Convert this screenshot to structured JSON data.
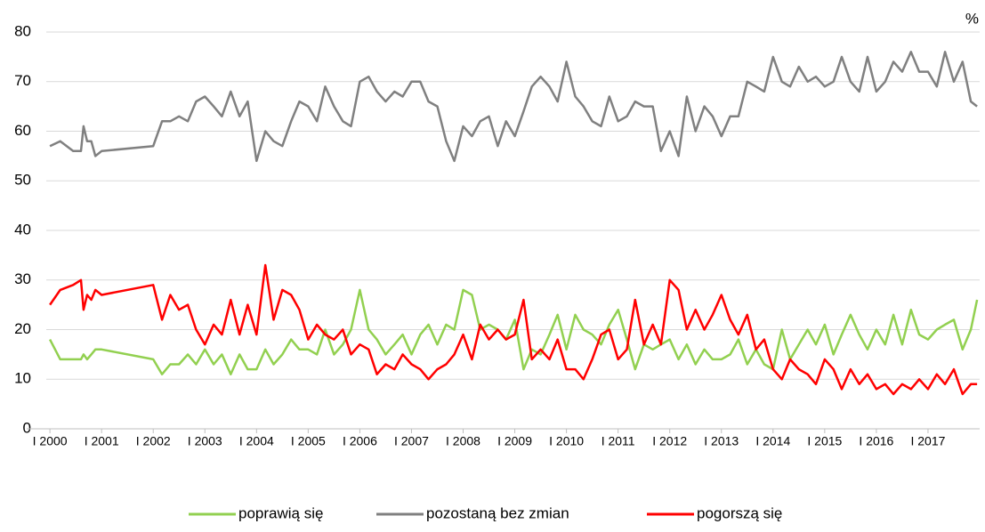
{
  "chart_data": {
    "type": "line",
    "unit_label": "%",
    "x": [
      2000.0,
      2000.2,
      2000.45,
      2000.6,
      2000.65,
      2000.72,
      2000.8,
      2000.88,
      2001.0,
      2002.0,
      2002.17,
      2002.33,
      2002.5,
      2002.67,
      2002.83,
      2003.0,
      2003.17,
      2003.33,
      2003.5,
      2003.67,
      2003.83,
      2004.0,
      2004.17,
      2004.33,
      2004.5,
      2004.67,
      2004.83,
      2005.0,
      2005.17,
      2005.33,
      2005.5,
      2005.67,
      2005.83,
      2006.0,
      2006.17,
      2006.33,
      2006.5,
      2006.67,
      2006.83,
      2007.0,
      2007.17,
      2007.33,
      2007.5,
      2007.67,
      2007.83,
      2008.0,
      2008.17,
      2008.33,
      2008.5,
      2008.67,
      2008.83,
      2009.0,
      2009.17,
      2009.33,
      2009.5,
      2009.67,
      2009.83,
      2010.0,
      2010.17,
      2010.33,
      2010.5,
      2010.67,
      2010.83,
      2011.0,
      2011.17,
      2011.33,
      2011.5,
      2011.67,
      2011.83,
      2012.0,
      2012.17,
      2012.33,
      2012.5,
      2012.67,
      2012.83,
      2013.0,
      2013.17,
      2013.33,
      2013.5,
      2013.67,
      2013.83,
      2014.0,
      2014.17,
      2014.33,
      2014.5,
      2014.67,
      2014.83,
      2015.0,
      2015.17,
      2015.33,
      2015.5,
      2015.67,
      2015.83,
      2016.0,
      2016.17,
      2016.33,
      2016.5,
      2016.67,
      2016.83,
      2017.0,
      2017.17,
      2017.33,
      2017.5,
      2017.67,
      2017.83,
      2017.95
    ],
    "series": [
      {
        "name": "poprawią się",
        "color": "#92d050",
        "values": [
          18,
          14,
          14,
          14,
          15,
          14,
          15,
          16,
          16,
          14,
          11,
          13,
          13,
          15,
          13,
          16,
          13,
          15,
          11,
          15,
          12,
          12,
          16,
          13,
          15,
          18,
          16,
          16,
          15,
          20,
          15,
          17,
          20,
          28,
          20,
          18,
          15,
          17,
          19,
          15,
          19,
          21,
          17,
          21,
          20,
          28,
          27,
          20,
          21,
          20,
          18,
          22,
          12,
          16,
          15,
          19,
          23,
          16,
          23,
          20,
          19,
          17,
          21,
          24,
          18,
          12,
          17,
          16,
          17,
          18,
          14,
          17,
          13,
          16,
          14,
          14,
          15,
          18,
          13,
          16,
          13,
          12,
          20,
          14,
          17,
          20,
          17,
          21,
          15,
          19,
          23,
          19,
          16,
          20,
          17,
          23,
          17,
          24,
          19,
          18,
          20,
          21,
          22,
          16,
          20,
          26
        ]
      },
      {
        "name": "pozostaną bez zmian",
        "color": "#808080",
        "values": [
          57,
          58,
          56,
          56,
          61,
          58,
          58,
          55,
          56,
          57,
          62,
          62,
          63,
          62,
          66,
          67,
          65,
          63,
          68,
          63,
          66,
          54,
          60,
          58,
          57,
          62,
          66,
          65,
          62,
          69,
          65,
          62,
          61,
          70,
          71,
          68,
          66,
          68,
          67,
          70,
          70,
          66,
          65,
          58,
          54,
          61,
          59,
          62,
          63,
          57,
          62,
          59,
          64,
          69,
          71,
          69,
          66,
          74,
          67,
          65,
          62,
          61,
          67,
          62,
          63,
          66,
          65,
          65,
          56,
          60,
          55,
          67,
          60,
          65,
          63,
          59,
          63,
          63,
          70,
          69,
          68,
          75,
          70,
          69,
          73,
          70,
          71,
          69,
          70,
          75,
          70,
          68,
          75,
          68,
          70,
          74,
          72,
          76,
          72,
          72,
          69,
          76,
          70,
          74,
          66,
          65
        ]
      },
      {
        "name": "pogorszą się",
        "color": "#ff0000",
        "values": [
          25,
          28,
          29,
          30,
          24,
          27,
          26,
          28,
          27,
          29,
          22,
          27,
          24,
          25,
          20,
          17,
          21,
          19,
          26,
          19,
          25,
          19,
          33,
          22,
          28,
          27,
          24,
          18,
          21,
          19,
          18,
          20,
          15,
          17,
          16,
          11,
          13,
          12,
          15,
          13,
          12,
          10,
          12,
          13,
          15,
          19,
          14,
          21,
          18,
          20,
          18,
          19,
          26,
          14,
          16,
          14,
          18,
          12,
          12,
          10,
          14,
          19,
          20,
          14,
          16,
          26,
          17,
          21,
          17,
          30,
          28,
          20,
          24,
          20,
          23,
          27,
          22,
          19,
          23,
          16,
          18,
          12,
          10,
          14,
          12,
          11,
          9,
          14,
          12,
          8,
          12,
          9,
          11,
          8,
          9,
          7,
          9,
          8,
          10,
          8,
          11,
          9,
          12,
          7,
          9,
          9
        ]
      }
    ],
    "xlim": [
      1999.55,
      2018
    ],
    "xticks": [
      {
        "value": 2000,
        "label": "I 2000"
      },
      {
        "value": 2001,
        "label": "I 2001"
      },
      {
        "value": 2002,
        "label": "I 2002"
      },
      {
        "value": 2003,
        "label": "I 2003"
      },
      {
        "value": 2004,
        "label": "I 2004"
      },
      {
        "value": 2005,
        "label": "I 2005"
      },
      {
        "value": 2006,
        "label": "I 2006"
      },
      {
        "value": 2007,
        "label": "I 2007"
      },
      {
        "value": 2008,
        "label": "I 2008"
      },
      {
        "value": 2009,
        "label": "I 2009"
      },
      {
        "value": 2010,
        "label": "I 2010"
      },
      {
        "value": 2011,
        "label": "I 2011"
      },
      {
        "value": 2012,
        "label": "I 2012"
      },
      {
        "value": 2013,
        "label": "I 2013"
      },
      {
        "value": 2014,
        "label": "I 2014"
      },
      {
        "value": 2015,
        "label": "I 2015"
      },
      {
        "value": 2016,
        "label": "I 2016"
      },
      {
        "value": 2017,
        "label": "I 2017"
      }
    ],
    "ylim": [
      0,
      80
    ],
    "yticks": [
      0,
      10,
      20,
      30,
      40,
      50,
      60,
      70,
      80
    ],
    "grid": true,
    "legend": "bottom"
  }
}
